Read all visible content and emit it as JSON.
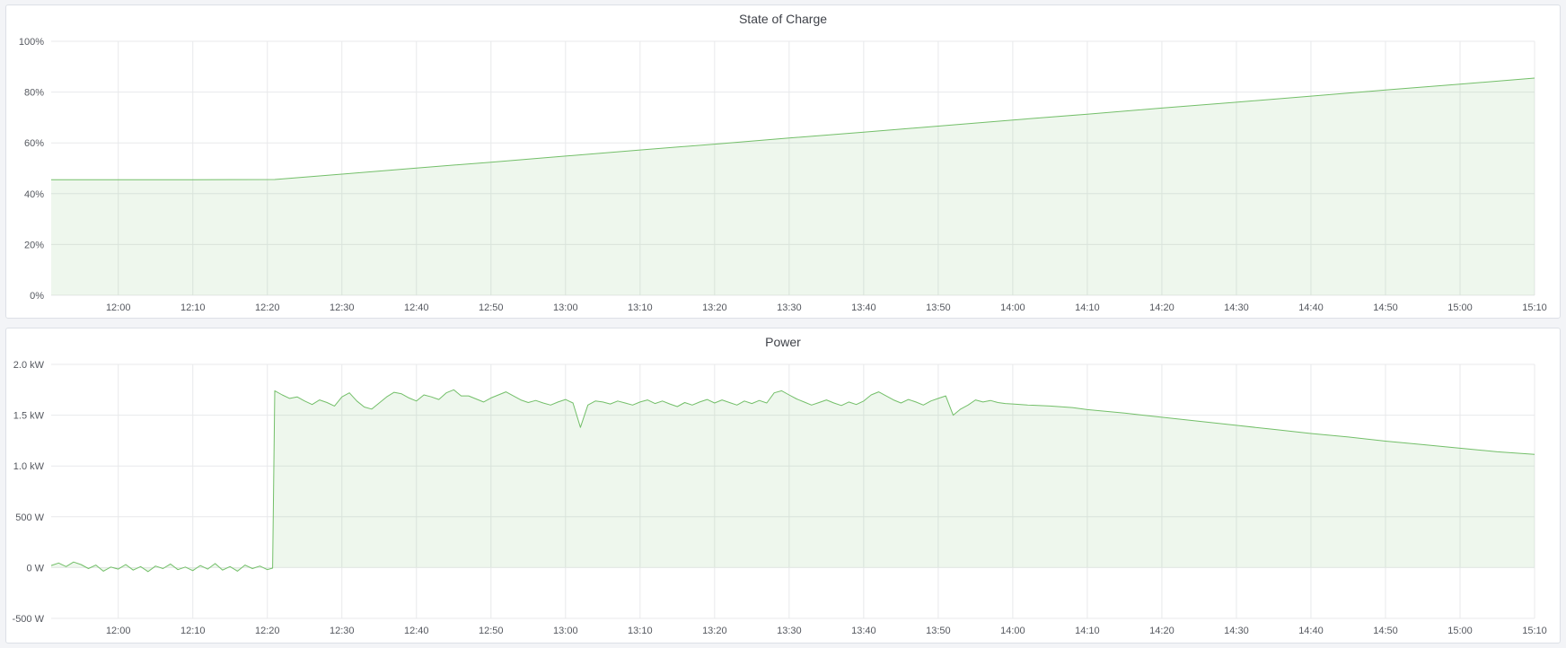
{
  "panels": [
    {
      "title": "State of Charge"
    },
    {
      "title": "Power"
    }
  ],
  "colors": {
    "line": "#73bf69",
    "fill": "#73bf69",
    "fill_opacity": 0.12,
    "grid": "#e8e9eb",
    "axis_text": "#55585f",
    "title_text": "#3f4249",
    "panel_bg": "#ffffff",
    "panel_border": "#dde0e6",
    "page_bg": "#f3f4f7"
  },
  "chart_data": [
    {
      "type": "area",
      "title": "State of Charge",
      "x_unit": "minutes-since-midnight",
      "x_range": [
        711,
        910
      ],
      "y_range": [
        0,
        100
      ],
      "fill_baseline": 0,
      "grid": true,
      "legend": "none",
      "y_ticks": [
        {
          "v": 0,
          "label": "0%"
        },
        {
          "v": 20,
          "label": "20%"
        },
        {
          "v": 40,
          "label": "40%"
        },
        {
          "v": 60,
          "label": "60%"
        },
        {
          "v": 80,
          "label": "80%"
        },
        {
          "v": 100,
          "label": "100%"
        }
      ],
      "x_ticks": [
        {
          "v": 720,
          "label": "12:00"
        },
        {
          "v": 730,
          "label": "12:10"
        },
        {
          "v": 740,
          "label": "12:20"
        },
        {
          "v": 750,
          "label": "12:30"
        },
        {
          "v": 760,
          "label": "12:40"
        },
        {
          "v": 770,
          "label": "12:50"
        },
        {
          "v": 780,
          "label": "13:00"
        },
        {
          "v": 790,
          "label": "13:10"
        },
        {
          "v": 800,
          "label": "13:20"
        },
        {
          "v": 810,
          "label": "13:30"
        },
        {
          "v": 820,
          "label": "13:40"
        },
        {
          "v": 830,
          "label": "13:50"
        },
        {
          "v": 840,
          "label": "14:00"
        },
        {
          "v": 850,
          "label": "14:10"
        },
        {
          "v": 860,
          "label": "14:20"
        },
        {
          "v": 870,
          "label": "14:30"
        },
        {
          "v": 880,
          "label": "14:40"
        },
        {
          "v": 890,
          "label": "14:50"
        },
        {
          "v": 900,
          "label": "15:00"
        },
        {
          "v": 910,
          "label": "15:10"
        }
      ],
      "series": [
        {
          "name": "State of Charge",
          "points": [
            [
              711,
              45.5
            ],
            [
              720,
              45.5
            ],
            [
              730,
              45.5
            ],
            [
              741,
              45.6
            ],
            [
              750,
              47.7
            ],
            [
              760,
              50.1
            ],
            [
              770,
              52.4
            ],
            [
              780,
              54.8
            ],
            [
              790,
              57.2
            ],
            [
              800,
              59.5
            ],
            [
              810,
              61.9
            ],
            [
              820,
              64.2
            ],
            [
              830,
              66.6
            ],
            [
              840,
              69.0
            ],
            [
              850,
              71.3
            ],
            [
              860,
              73.7
            ],
            [
              870,
              76.0
            ],
            [
              880,
              78.4
            ],
            [
              890,
              80.8
            ],
            [
              900,
              83.1
            ],
            [
              910,
              85.5
            ]
          ]
        }
      ]
    },
    {
      "type": "area",
      "title": "Power",
      "x_unit": "minutes-since-midnight",
      "x_range": [
        711,
        910
      ],
      "y_range": [
        -500,
        2000
      ],
      "fill_baseline": 0,
      "grid": true,
      "legend": "none",
      "y_ticks": [
        {
          "v": -500,
          "label": "-500 W"
        },
        {
          "v": 0,
          "label": "0 W"
        },
        {
          "v": 500,
          "label": "500 W"
        },
        {
          "v": 1000,
          "label": "1.0 kW"
        },
        {
          "v": 1500,
          "label": "1.5 kW"
        },
        {
          "v": 2000,
          "label": "2.0 kW"
        }
      ],
      "x_ticks": [
        {
          "v": 720,
          "label": "12:00"
        },
        {
          "v": 730,
          "label": "12:10"
        },
        {
          "v": 740,
          "label": "12:20"
        },
        {
          "v": 750,
          "label": "12:30"
        },
        {
          "v": 760,
          "label": "12:40"
        },
        {
          "v": 770,
          "label": "12:50"
        },
        {
          "v": 780,
          "label": "13:00"
        },
        {
          "v": 790,
          "label": "13:10"
        },
        {
          "v": 800,
          "label": "13:20"
        },
        {
          "v": 810,
          "label": "13:30"
        },
        {
          "v": 820,
          "label": "13:40"
        },
        {
          "v": 830,
          "label": "13:50"
        },
        {
          "v": 840,
          "label": "14:00"
        },
        {
          "v": 850,
          "label": "14:10"
        },
        {
          "v": 860,
          "label": "14:20"
        },
        {
          "v": 870,
          "label": "14:30"
        },
        {
          "v": 880,
          "label": "14:40"
        },
        {
          "v": 890,
          "label": "14:50"
        },
        {
          "v": 900,
          "label": "15:00"
        },
        {
          "v": 910,
          "label": "15:10"
        }
      ],
      "series": [
        {
          "name": "Power",
          "points": [
            [
              711,
              20
            ],
            [
              712,
              45
            ],
            [
              713,
              10
            ],
            [
              714,
              55
            ],
            [
              715,
              30
            ],
            [
              716,
              -10
            ],
            [
              717,
              25
            ],
            [
              718,
              -35
            ],
            [
              719,
              5
            ],
            [
              720,
              -15
            ],
            [
              721,
              30
            ],
            [
              722,
              -25
            ],
            [
              723,
              10
            ],
            [
              724,
              -40
            ],
            [
              725,
              15
            ],
            [
              726,
              -10
            ],
            [
              727,
              35
            ],
            [
              728,
              -20
            ],
            [
              729,
              5
            ],
            [
              730,
              -30
            ],
            [
              731,
              20
            ],
            [
              732,
              -15
            ],
            [
              733,
              40
            ],
            [
              734,
              -25
            ],
            [
              735,
              10
            ],
            [
              736,
              -35
            ],
            [
              737,
              25
            ],
            [
              738,
              -10
            ],
            [
              739,
              15
            ],
            [
              740,
              -20
            ],
            [
              740.7,
              -5
            ],
            [
              741,
              1740
            ],
            [
              742,
              1700
            ],
            [
              743,
              1665
            ],
            [
              744,
              1680
            ],
            [
              745,
              1640
            ],
            [
              746,
              1605
            ],
            [
              747,
              1650
            ],
            [
              748,
              1625
            ],
            [
              749,
              1590
            ],
            [
              750,
              1680
            ],
            [
              751,
              1720
            ],
            [
              752,
              1640
            ],
            [
              753,
              1580
            ],
            [
              754,
              1560
            ],
            [
              755,
              1620
            ],
            [
              756,
              1680
            ],
            [
              757,
              1725
            ],
            [
              758,
              1710
            ],
            [
              759,
              1670
            ],
            [
              760,
              1640
            ],
            [
              761,
              1700
            ],
            [
              762,
              1680
            ],
            [
              763,
              1655
            ],
            [
              764,
              1720
            ],
            [
              765,
              1750
            ],
            [
              766,
              1690
            ],
            [
              767,
              1690
            ],
            [
              768,
              1660
            ],
            [
              769,
              1630
            ],
            [
              770,
              1670
            ],
            [
              771,
              1700
            ],
            [
              772,
              1730
            ],
            [
              773,
              1690
            ],
            [
              774,
              1650
            ],
            [
              775,
              1625
            ],
            [
              776,
              1645
            ],
            [
              777,
              1620
            ],
            [
              778,
              1600
            ],
            [
              779,
              1630
            ],
            [
              780,
              1655
            ],
            [
              781,
              1620
            ],
            [
              782,
              1380
            ],
            [
              783,
              1600
            ],
            [
              784,
              1640
            ],
            [
              785,
              1630
            ],
            [
              786,
              1610
            ],
            [
              787,
              1640
            ],
            [
              788,
              1620
            ],
            [
              789,
              1600
            ],
            [
              790,
              1630
            ],
            [
              791,
              1650
            ],
            [
              792,
              1615
            ],
            [
              793,
              1640
            ],
            [
              794,
              1610
            ],
            [
              795,
              1585
            ],
            [
              796,
              1625
            ],
            [
              797,
              1600
            ],
            [
              798,
              1630
            ],
            [
              799,
              1655
            ],
            [
              800,
              1620
            ],
            [
              801,
              1650
            ],
            [
              802,
              1625
            ],
            [
              803,
              1600
            ],
            [
              804,
              1640
            ],
            [
              805,
              1615
            ],
            [
              806,
              1645
            ],
            [
              807,
              1620
            ],
            [
              808,
              1720
            ],
            [
              809,
              1740
            ],
            [
              810,
              1700
            ],
            [
              811,
              1660
            ],
            [
              812,
              1630
            ],
            [
              813,
              1600
            ],
            [
              814,
              1625
            ],
            [
              815,
              1650
            ],
            [
              816,
              1620
            ],
            [
              817,
              1595
            ],
            [
              818,
              1630
            ],
            [
              819,
              1605
            ],
            [
              820,
              1640
            ],
            [
              821,
              1700
            ],
            [
              822,
              1730
            ],
            [
              823,
              1690
            ],
            [
              824,
              1650
            ],
            [
              825,
              1620
            ],
            [
              826,
              1655
            ],
            [
              827,
              1630
            ],
            [
              828,
              1600
            ],
            [
              829,
              1640
            ],
            [
              830,
              1665
            ],
            [
              831,
              1690
            ],
            [
              832,
              1500
            ],
            [
              833,
              1560
            ],
            [
              834,
              1600
            ],
            [
              835,
              1650
            ],
            [
              836,
              1630
            ],
            [
              837,
              1645
            ],
            [
              838,
              1625
            ],
            [
              839,
              1615
            ],
            [
              840,
              1610
            ],
            [
              842,
              1600
            ],
            [
              845,
              1590
            ],
            [
              848,
              1575
            ],
            [
              850,
              1555
            ],
            [
              855,
              1520
            ],
            [
              860,
              1480
            ],
            [
              865,
              1440
            ],
            [
              870,
              1400
            ],
            [
              875,
              1360
            ],
            [
              880,
              1320
            ],
            [
              885,
              1285
            ],
            [
              890,
              1245
            ],
            [
              895,
              1210
            ],
            [
              900,
              1175
            ],
            [
              905,
              1140
            ],
            [
              910,
              1115
            ]
          ]
        }
      ]
    }
  ]
}
